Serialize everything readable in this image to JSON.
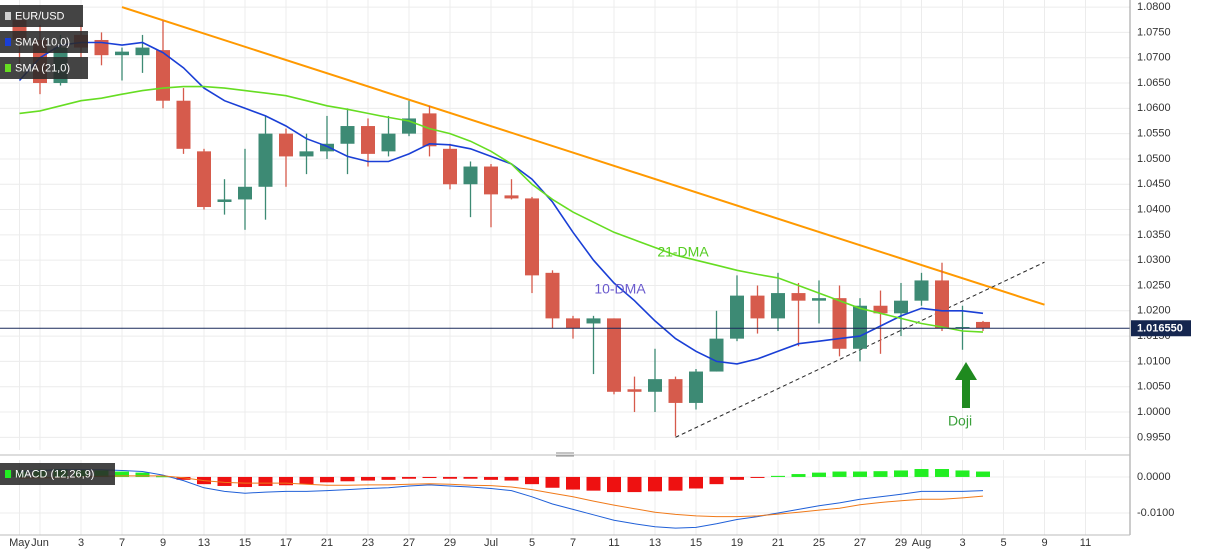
{
  "chart_data": {
    "type": "candlestick",
    "title": "EUR/USD",
    "categories": [
      "May",
      "Jun",
      null,
      "3",
      null,
      "7",
      null,
      "9",
      null,
      "13",
      null,
      "15",
      null,
      "17",
      null,
      "21",
      null,
      "23",
      null,
      "27",
      null,
      "29",
      null,
      "Jul",
      null,
      "5",
      null,
      "7",
      null,
      "11",
      null,
      "13",
      null,
      "15",
      null,
      "19",
      null,
      "21",
      null,
      "25",
      null,
      "27",
      null,
      "29",
      "Aug",
      null,
      "3",
      null,
      "5",
      null,
      "9",
      null,
      "11"
    ],
    "open": [
      1.0775,
      1.0735,
      1.065,
      1.0745,
      1.0735,
      1.0705,
      1.0705,
      1.0715,
      1.0615,
      1.0515,
      1.0415,
      1.042,
      1.0445,
      1.055,
      1.0505,
      1.0515,
      1.053,
      1.0565,
      1.0515,
      1.055,
      1.059,
      1.052,
      1.045,
      1.0485,
      1.0428,
      1.0422,
      1.0275,
      1.0185,
      1.0175,
      1.0185,
      1.0045,
      1.004,
      1.0065,
      1.0018,
      1.008,
      1.0145,
      1.023,
      1.0185,
      1.0235,
      1.022,
      1.0225,
      1.0125,
      1.021,
      1.0195,
      1.022,
      1.026,
      1.0165,
      1.0178,
      null,
      null,
      null,
      null,
      null
    ],
    "high": [
      1.0787,
      1.0765,
      1.0745,
      1.0765,
      1.075,
      1.072,
      1.0745,
      1.0773,
      1.064,
      1.052,
      1.046,
      1.052,
      1.0585,
      1.056,
      1.055,
      1.0585,
      1.06,
      1.058,
      1.0585,
      1.0615,
      1.0605,
      1.053,
      1.0495,
      1.049,
      1.046,
      1.0425,
      1.028,
      1.019,
      1.019,
      1.0185,
      1.007,
      1.0125,
      1.007,
      1.0085,
      1.02,
      1.027,
      1.025,
      1.0275,
      1.0255,
      1.026,
      1.025,
      1.0225,
      1.024,
      1.0255,
      1.0275,
      1.0295,
      1.021,
      1.018,
      null,
      null,
      null,
      null,
      null
    ],
    "low": [
      1.068,
      1.0628,
      1.0645,
      1.07,
      1.0685,
      1.0655,
      1.067,
      1.06,
      1.051,
      1.04,
      1.039,
      1.036,
      1.038,
      1.0445,
      1.047,
      1.05,
      1.047,
      1.0485,
      1.0505,
      1.0545,
      1.0505,
      1.044,
      1.0385,
      1.0365,
      1.042,
      1.0235,
      1.0165,
      1.0145,
      1.0075,
      1.0035,
      1.0,
      1.0,
      0.9952,
      1.0005,
      1.008,
      1.014,
      1.0155,
      1.016,
      1.013,
      1.0175,
      1.011,
      1.01,
      1.0115,
      1.015,
      1.021,
      1.016,
      1.0123,
      1.016,
      null,
      null,
      null,
      null,
      null
    ],
    "close": [
      1.0735,
      1.065,
      1.072,
      1.072,
      1.0705,
      1.0712,
      1.072,
      1.0615,
      1.052,
      1.0405,
      1.042,
      1.0445,
      1.055,
      1.0505,
      1.0515,
      1.053,
      1.0565,
      1.051,
      1.055,
      1.058,
      1.0525,
      1.045,
      1.0485,
      1.043,
      1.0422,
      1.027,
      1.0185,
      1.0165,
      1.0185,
      1.004,
      1.004,
      1.0065,
      1.0018,
      1.008,
      1.0145,
      1.023,
      1.0185,
      1.0235,
      1.022,
      1.0225,
      1.0125,
      1.021,
      1.0195,
      1.022,
      1.026,
      1.0165,
      1.0168,
      1.0165,
      null,
      null,
      null,
      null,
      null
    ],
    "up_color": "#3d8a74",
    "down_color": "#d65b4c",
    "ylim": [
      0.9925,
      1.0814
    ],
    "yticks": [
      {
        "value": 1.08,
        "label": "1.0800"
      },
      {
        "value": 1.075,
        "label": "1.0750"
      },
      {
        "value": 1.07,
        "label": "1.0700"
      },
      {
        "value": 1.065,
        "label": "1.0650"
      },
      {
        "value": 1.06,
        "label": "1.0600"
      },
      {
        "value": 1.055,
        "label": "1.0550"
      },
      {
        "value": 1.05,
        "label": "1.0500"
      },
      {
        "value": 1.045,
        "label": "1.0450"
      },
      {
        "value": 1.04,
        "label": "1.0400"
      },
      {
        "value": 1.035,
        "label": "1.0350"
      },
      {
        "value": 1.03,
        "label": "1.0300"
      },
      {
        "value": 1.025,
        "label": "1.0250"
      },
      {
        "value": 1.02,
        "label": "1.0200"
      },
      {
        "value": 1.015,
        "label": "1.0150"
      },
      {
        "value": 1.01,
        "label": "1.0100"
      },
      {
        "value": 1.005,
        "label": "1.0050"
      },
      {
        "value": 1.0,
        "label": "1.0000"
      },
      {
        "value": 0.995,
        "label": "0.9950"
      }
    ],
    "grid": true,
    "last_price": {
      "value": 1.01655,
      "label": "1.016550"
    },
    "overlays": [
      {
        "name": "SMA (10,0)",
        "color": "#1a3fd6",
        "values": [
          1.0655,
          1.07,
          1.0725,
          1.073,
          1.073,
          1.0725,
          1.073,
          1.071,
          1.068,
          1.064,
          1.0615,
          1.06,
          1.0585,
          1.0565,
          1.054,
          1.0525,
          1.0505,
          1.0495,
          1.0495,
          1.051,
          1.053,
          1.0528,
          1.052,
          1.0505,
          1.049,
          1.046,
          1.0415,
          1.0355,
          1.03,
          1.0255,
          1.022,
          1.018,
          1.0145,
          1.012,
          1.01,
          1.0095,
          1.0105,
          1.012,
          1.0135,
          1.014,
          1.0145,
          1.015,
          1.017,
          1.019,
          1.0205,
          1.02,
          1.02,
          1.0195,
          null,
          null,
          null,
          null,
          null
        ]
      },
      {
        "name": "SMA (21,0)",
        "color": "#66dd22",
        "values": [
          1.059,
          1.0595,
          1.0605,
          1.0615,
          1.062,
          1.0628,
          1.0635,
          1.064,
          1.0643,
          1.0643,
          1.064,
          1.0635,
          1.063,
          1.0625,
          1.0615,
          1.0605,
          1.0598,
          1.059,
          1.0582,
          1.0575,
          1.056,
          1.055,
          1.0535,
          1.0515,
          1.049,
          1.045,
          1.042,
          1.0395,
          1.0375,
          1.0355,
          1.034,
          1.0325,
          1.031,
          1.03,
          1.029,
          1.028,
          1.0272,
          1.0265,
          1.025,
          1.0235,
          1.022,
          1.0205,
          1.0195,
          1.0185,
          1.0175,
          1.0168,
          1.016,
          1.0158,
          null,
          null,
          null,
          null,
          null
        ]
      }
    ],
    "trendlines": [
      {
        "color": "#ff9900",
        "dashed": false,
        "x": [
          5,
          50
        ],
        "y": [
          1.08,
          1.0212
        ]
      },
      {
        "color": "#222222",
        "dashed": true,
        "x": [
          32,
          50
        ],
        "y": [
          0.995,
          1.0296
        ]
      }
    ],
    "annotations": [
      {
        "text": "21-DMA",
        "color": "#55cc22"
      },
      {
        "text": "10-DMA",
        "color": "#6a5acd"
      },
      {
        "text": "Doji",
        "color": "#3aa03a"
      }
    ],
    "macd": {
      "name": "MACD (12,26,9)",
      "up_color": "#22ee22",
      "down_color": "#ee1111",
      "macd_color": "#2060d8",
      "signal_color": "#f07a1a",
      "histogram": [
        0.0018,
        0.002,
        0.0022,
        0.002,
        0.0018,
        0.0015,
        0.0012,
        0.0002,
        -0.0008,
        -0.002,
        -0.0025,
        -0.0028,
        -0.0025,
        -0.0023,
        -0.002,
        -0.0015,
        -0.0012,
        -0.001,
        -0.0008,
        -0.0005,
        -0.0003,
        -0.0005,
        -0.0005,
        -0.0008,
        -0.001,
        -0.002,
        -0.003,
        -0.0035,
        -0.0038,
        -0.0042,
        -0.0042,
        -0.004,
        -0.0038,
        -0.0032,
        -0.002,
        -0.0008,
        -0.0002,
        0.0003,
        0.0008,
        0.0012,
        0.0015,
        0.0015,
        0.0016,
        0.0018,
        0.0022,
        0.0022,
        0.0018,
        0.0015,
        null,
        null,
        null,
        null,
        null
      ],
      "macd": [
        0.0015,
        0.0018,
        0.002,
        0.002,
        0.002,
        0.0018,
        0.0015,
        0.0005,
        -0.001,
        -0.003,
        -0.004,
        -0.0045,
        -0.0042,
        -0.004,
        -0.004,
        -0.0038,
        -0.0035,
        -0.0032,
        -0.003,
        -0.0025,
        -0.0022,
        -0.0025,
        -0.0028,
        -0.0032,
        -0.0038,
        -0.0055,
        -0.0075,
        -0.009,
        -0.0105,
        -0.012,
        -0.013,
        -0.0138,
        -0.0142,
        -0.014,
        -0.013,
        -0.0118,
        -0.011,
        -0.01,
        -0.009,
        -0.008,
        -0.0072,
        -0.0062,
        -0.0055,
        -0.0048,
        -0.004,
        -0.004,
        -0.004,
        -0.0038,
        null,
        null,
        null,
        null,
        null
      ],
      "signal": [
        -0.0003,
        -0.0002,
        -0.0002,
        0.0,
        0.0002,
        0.0003,
        0.0003,
        0.0003,
        -0.0002,
        -0.001,
        -0.0015,
        -0.0017,
        -0.0017,
        -0.0017,
        -0.002,
        -0.0023,
        -0.0023,
        -0.0022,
        -0.0022,
        -0.002,
        -0.0019,
        -0.002,
        -0.0023,
        -0.0024,
        -0.0028,
        -0.0035,
        -0.0045,
        -0.0055,
        -0.0067,
        -0.0078,
        -0.0088,
        -0.0098,
        -0.0104,
        -0.0108,
        -0.011,
        -0.011,
        -0.0108,
        -0.0103,
        -0.0098,
        -0.0092,
        -0.0087,
        -0.0077,
        -0.0071,
        -0.0066,
        -0.0062,
        -0.0062,
        -0.0058,
        -0.0053,
        null,
        null,
        null,
        null,
        null
      ],
      "ylim": [
        -0.0161,
        0.0047
      ],
      "yticks": [
        {
          "value": 0,
          "label": "0.0000"
        },
        {
          "value": -0.01,
          "label": "-0.0100"
        }
      ]
    }
  }
}
